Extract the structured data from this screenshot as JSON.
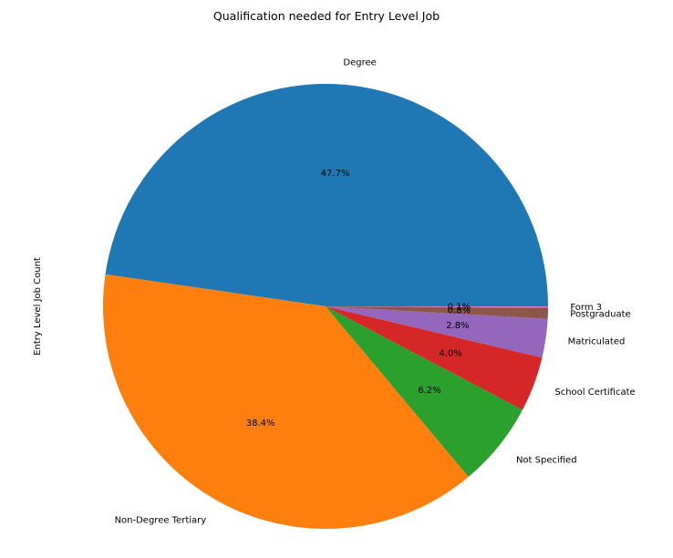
{
  "chart_data": {
    "type": "pie",
    "title": "Qualification needed for Entry Level Job",
    "ylabel": "Entry Level Job Count",
    "start_angle_deg": 0,
    "direction": "counterclockwise",
    "slices": [
      {
        "label": "Degree",
        "value": 47.7,
        "pct_label": "47.7%",
        "color": "#1f77b4"
      },
      {
        "label": "Non-Degree Tertiary",
        "value": 38.4,
        "pct_label": "38.4%",
        "color": "#ff7f0e"
      },
      {
        "label": "Not Specified",
        "value": 6.2,
        "pct_label": "6.2%",
        "color": "#2ca02c"
      },
      {
        "label": "School Certificate",
        "value": 4.0,
        "pct_label": "4.0%",
        "color": "#d62728"
      },
      {
        "label": "Matriculated",
        "value": 2.8,
        "pct_label": "2.8%",
        "color": "#9467bd"
      },
      {
        "label": "Postgraduate",
        "value": 0.8,
        "pct_label": "0.8%",
        "color": "#8c564b"
      },
      {
        "label": "Form 3",
        "value": 0.1,
        "pct_label": "0.1%",
        "color": "#e377c2"
      }
    ]
  }
}
